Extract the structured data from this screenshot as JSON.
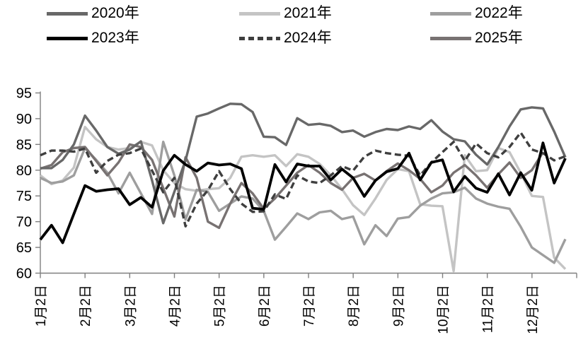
{
  "chart_data": {
    "type": "line",
    "title": "",
    "xlabel": "",
    "ylabel": "",
    "ylim": [
      60,
      95
    ],
    "y_ticks": [
      60,
      65,
      70,
      75,
      80,
      85,
      90,
      95
    ],
    "x_tick_labels": [
      "1月2日",
      "2月2日",
      "3月2日",
      "4月2日",
      "5月2日",
      "6月2日",
      "7月2日",
      "8月2日",
      "9月2日",
      "10月2日",
      "11月2日",
      "12月2日"
    ],
    "points_per_month": 4,
    "grid": false,
    "legend_position": "top",
    "axis_color": "#7f7f7f",
    "series": [
      {
        "name": "2020年",
        "color": "#686868",
        "style": "solid",
        "values": [
          80.4,
          80.4,
          82.0,
          85.0,
          90.6,
          87.7,
          84.5,
          83.2,
          84.0,
          85.6,
          78.0,
          69.7,
          75.8,
          81.9,
          90.4,
          91.0,
          92.0,
          92.9,
          92.8,
          91.3,
          86.5,
          86.4,
          84.9,
          90.1,
          88.8,
          89.0,
          88.6,
          87.4,
          87.7,
          86.5,
          87.4,
          88.0,
          87.8,
          88.5,
          88.0,
          89.7,
          87.5,
          86.0,
          85.6,
          83.0,
          81.1,
          84.5,
          88.5,
          91.8,
          92.2,
          92.0,
          87.5,
          82.5
        ]
      },
      {
        "name": "2021年",
        "color": "#c4c4c4",
        "style": "solid",
        "values": [
          79.0,
          77.3,
          78.0,
          80.5,
          88.4,
          86.0,
          84.5,
          84.0,
          84.3,
          85.5,
          84.8,
          80.0,
          77.5,
          76.3,
          76.0,
          76.3,
          76.5,
          78.5,
          82.6,
          82.9,
          82.6,
          82.9,
          80.8,
          83.1,
          82.6,
          81.2,
          79.0,
          76.3,
          73.2,
          71.3,
          74.5,
          78.1,
          80.2,
          79.8,
          73.4,
          73.1,
          73.0,
          60.4,
          82.9,
          79.8,
          80.0,
          84.3,
          83.5,
          79.5,
          75.0,
          74.8,
          63.0,
          60.8
        ]
      },
      {
        "name": "2022年",
        "color": "#9e9e9e",
        "style": "solid",
        "values": [
          78.5,
          77.5,
          77.8,
          79.0,
          84.3,
          82.0,
          79.5,
          75.5,
          79.5,
          75.5,
          71.5,
          85.5,
          79.0,
          70.4,
          76.2,
          75.8,
          72.1,
          73.5,
          74.9,
          74.5,
          72.1,
          66.5,
          69.0,
          71.6,
          70.5,
          71.8,
          72.1,
          70.5,
          71.0,
          65.6,
          69.3,
          67.2,
          70.6,
          70.9,
          73.1,
          74.5,
          75.5,
          75.7,
          76.6,
          74.5,
          73.5,
          72.9,
          72.5,
          69.0,
          65.0,
          63.5,
          62.0,
          66.6
        ]
      },
      {
        "name": "2023年",
        "color": "#000000",
        "style": "solid",
        "values": [
          66.5,
          69.3,
          65.9,
          71.5,
          77.0,
          75.9,
          76.2,
          76.4,
          73.3,
          74.7,
          72.8,
          79.9,
          82.9,
          81.1,
          79.8,
          81.4,
          81.0,
          81.2,
          80.3,
          72.6,
          72.4,
          81.1,
          77.7,
          81.2,
          80.8,
          80.8,
          78.1,
          80.2,
          78.5,
          74.9,
          78.0,
          79.7,
          80.3,
          83.3,
          78.1,
          81.5,
          82.0,
          75.8,
          78.8,
          76.5,
          75.7,
          79.3,
          75.2,
          79.5,
          76.1,
          85.3,
          77.5,
          82.3
        ]
      },
      {
        "name": "2024年",
        "color": "#3f3f3f",
        "style": "dashed",
        "values": [
          82.9,
          83.8,
          83.8,
          83.6,
          84.2,
          79.5,
          81.8,
          83.0,
          83.3,
          84.2,
          79.9,
          75.7,
          78.5,
          69.1,
          73.5,
          76.1,
          79.8,
          76.3,
          73.5,
          71.9,
          72.0,
          75.3,
          74.4,
          79.0,
          77.8,
          77.5,
          79.0,
          80.8,
          79.9,
          82.6,
          83.8,
          83.3,
          83.0,
          82.8,
          79.0,
          81.5,
          83.5,
          85.5,
          81.8,
          85.2,
          83.3,
          82.5,
          84.5,
          87.3,
          84.0,
          83.3,
          81.9,
          82.7
        ]
      },
      {
        "name": "2025年",
        "color": "#787272",
        "style": "solid",
        "values": [
          80.3,
          81.0,
          83.5,
          84.3,
          84.5,
          81.8,
          79.0,
          81.5,
          85.0,
          84.5,
          82.0,
          76.5,
          71.0,
          82.5,
          78.5,
          70.0,
          68.8,
          73.5,
          77.5,
          75.5,
          72.5,
          74.5,
          77.0,
          79.5,
          81.0,
          79.5,
          77.5,
          76.2,
          78.5,
          79.3,
          78.0,
          79.8,
          81.3,
          80.0,
          78.3,
          75.7,
          77.0,
          79.5,
          81.0,
          79.0,
          76.6,
          79.2,
          81.5,
          78.5,
          80.0,
          83.5,
          null,
          null
        ]
      }
    ]
  },
  "legend": {
    "rows": 2,
    "cols": 3
  }
}
